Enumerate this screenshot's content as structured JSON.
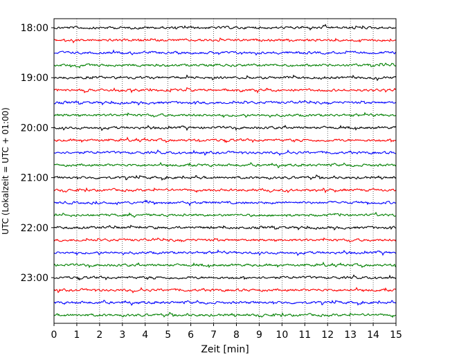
{
  "chart_data": {
    "type": "line",
    "title": "",
    "xlabel": "Zeit  [min]",
    "ylabel": "UTC (Lokalzeit = UTC + 01:00)",
    "x_ticks": [
      "0",
      "1",
      "2",
      "3",
      "4",
      "5",
      "6",
      "7",
      "8",
      "9",
      "10",
      "11",
      "12",
      "13",
      "14",
      "15"
    ],
    "xlim": [
      0,
      15
    ],
    "y_ticks": [
      "18:00",
      "19:00",
      "20:00",
      "21:00",
      "22:00",
      "23:00"
    ],
    "grid": "vertical dotted",
    "trace_colors": [
      "#000000",
      "#ff0000",
      "#0000ff",
      "#008000"
    ],
    "trace_count": 24,
    "trace_interval_minutes": 15,
    "first_trace": "18:00",
    "last_trace": "23:45"
  }
}
